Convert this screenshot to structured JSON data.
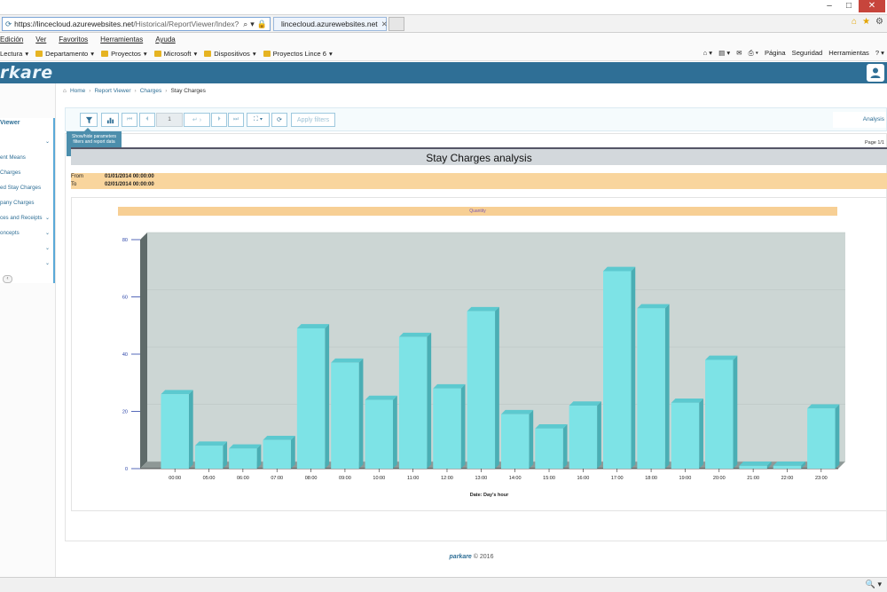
{
  "browser": {
    "address": "https://lincecloud.azurewebsites.net",
    "address_rest": "/Historical/ReportViewer/Index?",
    "tab_title": "lincecloud.azurewebsites.net",
    "menu": [
      "Edición",
      "Ver",
      "Favoritos",
      "Herramientas",
      "Ayuda"
    ],
    "favorites": [
      "Lectura",
      "Departamento",
      "Proyectos",
      "Microsoft",
      "Dispositivos",
      "Proyectos Lince 6"
    ],
    "command_bar": [
      "Página",
      "Seguridad",
      "Herramientas"
    ]
  },
  "app": {
    "logo": "rkare",
    "sidebar": {
      "title": "Viewer",
      "items": [
        {
          "label": "",
          "chevron": "⌄"
        },
        {
          "label": "ent Means",
          "chevron": ""
        },
        {
          "label": "Charges",
          "chevron": ""
        },
        {
          "label": "ed Stay Charges",
          "chevron": ""
        },
        {
          "label": "pany Charges",
          "chevron": ""
        },
        {
          "label": "ces and Receipts",
          "chevron": "⌄"
        },
        {
          "label": "oncepts",
          "chevron": "⌄"
        },
        {
          "label": "",
          "chevron": "⌄"
        },
        {
          "label": "",
          "chevron": "⌄"
        }
      ]
    },
    "breadcrumb": [
      "Home",
      "Report Viewer",
      "Charges",
      "Stay Charges"
    ],
    "toolbar": {
      "page_value": "1",
      "apply_filters": "Apply filters",
      "right_label": "Analysis",
      "tooltip": "Show/hide parameters filters and report data"
    },
    "report": {
      "page_indicator": "Page 1/1",
      "title": "Stay Charges analysis",
      "params": [
        {
          "key": "From",
          "value": "01/01/2014 00:00:00"
        },
        {
          "key": "To",
          "value": "02/01/2014 00:00:00"
        }
      ]
    },
    "footer": {
      "brand": "parkare",
      "text": "© 2016"
    },
    "status": {
      "zoom": "🔍 ▾"
    }
  },
  "chart_data": {
    "type": "bar",
    "title": "Quantity",
    "xlabel": "Date: Day's hour",
    "ylabel": "",
    "ylim": [
      0,
      80
    ],
    "yticks": [
      0,
      20,
      40,
      60,
      80
    ],
    "categories": [
      "00:00",
      "05:00",
      "06:00",
      "07:00",
      "08:00",
      "09:00",
      "10:00",
      "11:00",
      "12:00",
      "13:00",
      "14:00",
      "15:00",
      "16:00",
      "17:00",
      "18:00",
      "19:00",
      "20:00",
      "21:00",
      "22:00",
      "23:00"
    ],
    "values": [
      26,
      8,
      7,
      10,
      49,
      37,
      24,
      46,
      28,
      55,
      19,
      14,
      22,
      69,
      56,
      23,
      38,
      1,
      1,
      21
    ],
    "colors": {
      "bar_front": "#7de3e6",
      "bar_top": "#5cc9cf",
      "bar_side": "#4aaeb4",
      "plot_bg": "#ccd6d4",
      "axis": "#2a2a2a",
      "tick_text": "#2b44a8"
    }
  }
}
